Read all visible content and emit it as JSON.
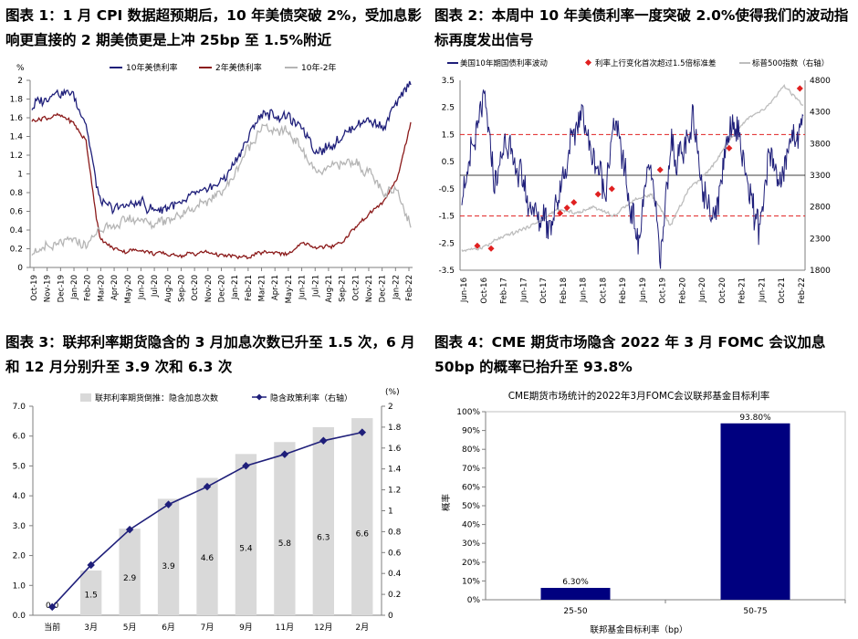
{
  "charts": [
    {
      "title": "图表 1：1 月 CPI 数据超预期后，10 年美债突破 2%，受加息影响更直接的 2 期美债更是上冲 25bp 至 1.5%附近",
      "chart_data": {
        "type": "line",
        "y_unit": "%",
        "ylim": [
          0,
          2
        ],
        "y_ticks": [
          "0",
          "0.2",
          "0.4",
          "0.6",
          "0.8",
          "1",
          "1.2",
          "1.4",
          "1.6",
          "1.8",
          "2"
        ],
        "x_ticks": [
          "Oct-19",
          "Nov-19",
          "Dec-19",
          "Jan-20",
          "Feb-20",
          "Mar-20",
          "Apr-20",
          "May-20",
          "Jun-20",
          "Jul-20",
          "Aug-20",
          "Sep-20",
          "Oct-20",
          "Nov-20",
          "Dec-20",
          "Jan-21",
          "Feb-21",
          "Mar-21",
          "Apr-21",
          "May-21",
          "Jun-21",
          "Jul-21",
          "Aug-21",
          "Sep-21",
          "Oct-21",
          "Nov-21",
          "Dec-21",
          "Jan-22",
          "Feb-22"
        ],
        "series": [
          {
            "name": "10年美债利率",
            "color": "#1f1f7a",
            "values": [
              1.72,
              1.82,
              1.88,
              1.85,
              1.55,
              0.7,
              0.62,
              0.66,
              0.7,
              0.6,
              0.65,
              0.68,
              0.78,
              0.85,
              0.93,
              1.1,
              1.4,
              1.65,
              1.62,
              1.6,
              1.5,
              1.25,
              1.28,
              1.4,
              1.55,
              1.58,
              1.48,
              1.78,
              1.98
            ]
          },
          {
            "name": "2年美债利率",
            "color": "#8b1a1a",
            "values": [
              1.58,
              1.6,
              1.62,
              1.55,
              1.35,
              0.3,
              0.2,
              0.17,
              0.18,
              0.15,
              0.14,
              0.13,
              0.15,
              0.16,
              0.13,
              0.12,
              0.12,
              0.15,
              0.16,
              0.15,
              0.25,
              0.22,
              0.22,
              0.28,
              0.45,
              0.58,
              0.7,
              0.95,
              1.55
            ]
          },
          {
            "name": "10年-2年",
            "color": "#b5b5b5",
            "values": [
              0.14,
              0.22,
              0.26,
              0.28,
              0.22,
              0.4,
              0.44,
              0.5,
              0.52,
              0.46,
              0.52,
              0.56,
              0.64,
              0.7,
              0.8,
              1.0,
              1.28,
              1.5,
              1.46,
              1.45,
              1.25,
              1.03,
              1.05,
              1.12,
              1.1,
              1.0,
              0.78,
              0.83,
              0.43
            ]
          }
        ]
      }
    },
    {
      "title": "图表 2：本周中 10 年美债利率一度突破 2.0%使得我们的波动指标再度发出信号",
      "chart_data": {
        "type": "line",
        "ylim": [
          -3.5,
          3.5
        ],
        "y_ticks": [
          "-3.5",
          "-2.5",
          "-1.5",
          "-0.5",
          "0.5",
          "1.5",
          "2.5",
          "3.5"
        ],
        "y2lim": [
          1800,
          4800
        ],
        "y2_ticks": [
          "1800",
          "2300",
          "2800",
          "3300",
          "3800",
          "4300",
          "4800"
        ],
        "x_ticks": [
          "Jun-16",
          "Oct-16",
          "Feb-17",
          "Jun-17",
          "Oct-17",
          "Feb-18",
          "Jun-18",
          "Oct-18",
          "Feb-19",
          "Jun-19",
          "Oct-19",
          "Feb-20",
          "Jun-20",
          "Oct-20",
          "Feb-21",
          "Jun-21",
          "Oct-21",
          "Feb-22"
        ],
        "threshold_lines": [
          1.5,
          -1.5
        ],
        "series": [
          {
            "name": "美国10年期国债利率波动",
            "color": "#1f1f7a",
            "values": [
              -1.0,
              1.2,
              2.8,
              -0.5,
              1.2,
              0.3,
              -1.0,
              -1.5,
              -1.8,
              -0.5,
              1.3,
              2.2,
              0.5,
              -0.5,
              2.2,
              -0.5,
              -2.5,
              0.8,
              -3.2,
              1.0,
              0.5,
              2.0,
              -0.8,
              -1.5,
              1.3,
              2.0,
              -0.5,
              -2.0,
              1.0,
              -0.5,
              1.5,
              2.0
            ]
          },
          {
            "name": "利率上行变化首次超过1.5倍标准差",
            "color": "#e02020",
            "values": [
              -2.6,
              -2.7,
              -1.4,
              -1.2,
              -1.0,
              -0.7,
              -0.5,
              0.2,
              1.0,
              3.2
            ]
          },
          {
            "name": "标普500指数（右轴）",
            "color": "#bdbdbd",
            "values": [
              2100,
              2150,
              2300,
              2420,
              2550,
              2750,
              2700,
              2800,
              2650,
              2900,
              3000,
              2500,
              3100,
              3350,
              3800,
              4200,
              4350,
              4700,
              4400
            ]
          }
        ]
      }
    },
    {
      "title": "图表 3：联邦利率期货隐含的 3 月加息次数已升至 1.5 次，6 月和 12 月分别升至 3.9 次和 6.3 次",
      "chart_data": {
        "type": "bar",
        "categories": [
          "当前",
          "3月",
          "5月",
          "6月",
          "7月",
          "9月",
          "11月",
          "12月",
          "2月"
        ],
        "ylim": [
          0,
          7
        ],
        "y_ticks": [
          "0.0",
          "1.0",
          "2.0",
          "3.0",
          "4.0",
          "5.0",
          "6.0",
          "7.0"
        ],
        "y2_unit": "(%)",
        "y2lim": [
          0,
          2
        ],
        "y2_ticks": [
          "0",
          "0.2",
          "0.4",
          "0.6",
          "0.8",
          "1",
          "1.2",
          "1.4",
          "1.6",
          "1.8",
          "2"
        ],
        "series": [
          {
            "name": "联邦利率期货倒推：隐含加息次数",
            "type": "bar",
            "color": "#d9d9d9",
            "values": [
              0.0,
              1.5,
              2.9,
              3.9,
              4.6,
              5.4,
              5.8,
              6.3,
              6.6
            ],
            "labels": [
              "0.0",
              "1.5",
              "2.9",
              "3.9",
              "4.6",
              "5.4",
              "5.8",
              "6.3",
              "6.6"
            ]
          },
          {
            "name": "隐含政策利率（右轴）",
            "type": "line",
            "color": "#1f1f7a",
            "values": [
              0.08,
              0.48,
              0.82,
              1.06,
              1.23,
              1.43,
              1.54,
              1.67,
              1.75
            ]
          }
        ]
      }
    },
    {
      "title": "图表 4：CME 期货市场隐含 2022 年 3 月 FOMC 会议加息 50bp 的概率已抬升至 93.8%",
      "chart_data": {
        "type": "bar",
        "title": "CME期货市场统计的2022年3月FOMC会议联邦基金目标利率",
        "xlabel": "联邦基金目标利率（bp）",
        "ylabel": "概率",
        "categories": [
          "25-50",
          "50-75"
        ],
        "values": [
          6.3,
          93.8
        ],
        "labels": [
          "6.30%",
          "93.80%"
        ],
        "color": "#00007f",
        "ylim": [
          0,
          100
        ],
        "y_ticks": [
          "0%",
          "10%",
          "20%",
          "30%",
          "40%",
          "50%",
          "60%",
          "70%",
          "80%",
          "90%",
          "100%"
        ]
      }
    }
  ]
}
